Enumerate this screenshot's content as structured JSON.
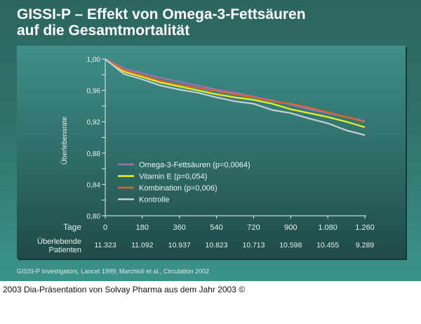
{
  "title_line1": "GISSI-P – Effekt von Omega-3-Fettsäuren",
  "title_line2": "auf die Gesamtmortalität",
  "source": "GISSI-P Investigators, Lancet 1999; Marchioli et al., Circulation 2002",
  "footer": "2003 Dia-Präsentation von Solvay Pharma aus dem Jahr 2003 ©",
  "chart_data": {
    "type": "line",
    "title": "",
    "xlabel": "Tage",
    "ylabel": "Überlebensrate",
    "xlim": [
      0,
      1260
    ],
    "ylim": [
      0.8,
      1.0
    ],
    "grid": false,
    "legend_position": "bottom-left",
    "x_ticks": [
      0,
      180,
      360,
      540,
      720,
      900,
      1080,
      1260
    ],
    "x_tick_labels": [
      "0",
      "180",
      "360",
      "540",
      "720",
      "900",
      "1.080",
      "1.260"
    ],
    "y_ticks": [
      0.8,
      0.84,
      0.88,
      0.92,
      0.96,
      1.0
    ],
    "y_tick_labels": [
      "0,80",
      "0,84",
      "0,88",
      "0,92",
      "0,96",
      "1,00"
    ],
    "patients_label_line1": "Überlebende",
    "patients_label_line2": "Patienten",
    "patients": [
      "11.323",
      "11.092",
      "10.937",
      "10.823",
      "10.713",
      "10.598",
      "10.455",
      "9.289"
    ],
    "x": [
      0,
      90,
      180,
      270,
      360,
      450,
      540,
      630,
      720,
      810,
      900,
      990,
      1080,
      1170,
      1260
    ],
    "series": [
      {
        "name": "Omega-3-Fettsäuren (p=0,0064)",
        "color": "#9b72b4",
        "values": [
          1.0,
          0.988,
          0.982,
          0.976,
          0.971,
          0.966,
          0.961,
          0.957,
          0.952,
          0.947,
          0.942,
          0.936,
          0.931,
          0.926,
          0.921
        ]
      },
      {
        "name": "Vitamin E (p=0,054)",
        "color": "#eef21c",
        "values": [
          1.0,
          0.984,
          0.977,
          0.97,
          0.965,
          0.96,
          0.955,
          0.951,
          0.948,
          0.943,
          0.936,
          0.931,
          0.926,
          0.92,
          0.913
        ]
      },
      {
        "name": "Kombination (p=0,006)",
        "color": "#e2622e",
        "values": [
          1.0,
          0.986,
          0.979,
          0.972,
          0.967,
          0.963,
          0.959,
          0.955,
          0.951,
          0.946,
          0.943,
          0.938,
          0.932,
          0.926,
          0.92
        ]
      },
      {
        "name": "Kontrolle",
        "color": "#c9cfd0",
        "values": [
          1.0,
          0.981,
          0.974,
          0.966,
          0.961,
          0.957,
          0.951,
          0.946,
          0.943,
          0.935,
          0.931,
          0.924,
          0.918,
          0.909,
          0.903
        ]
      }
    ]
  }
}
